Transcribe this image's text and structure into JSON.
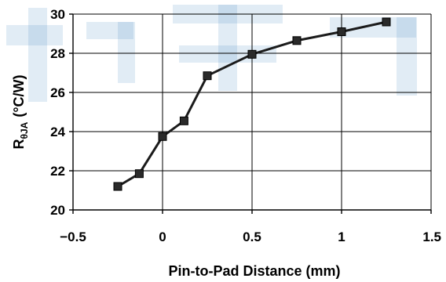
{
  "chart_data": {
    "type": "line",
    "title": "",
    "xlabel": "Pin-to-Pad Distance (mm)",
    "ylabel": {
      "main": "R",
      "subscript": "θJA",
      "unit": "(°C/W)"
    },
    "xlim": [
      -0.5,
      1.5
    ],
    "ylim": [
      20,
      30
    ],
    "x_ticks": [
      -0.5,
      0,
      0.5,
      1,
      1.5
    ],
    "x_tick_labels": [
      "−0.5",
      "0",
      "0.5",
      "1",
      "1.5"
    ],
    "y_ticks": [
      20,
      22,
      24,
      26,
      28,
      30
    ],
    "y_tick_labels": [
      "20",
      "22",
      "24",
      "26",
      "28",
      "30"
    ],
    "grid": true,
    "series": [
      {
        "x": [
          -0.25,
          -0.13,
          0,
          0.12,
          0.25,
          0.5,
          0.75,
          1.0,
          1.25
        ],
        "y": [
          21.2,
          21.85,
          23.75,
          24.55,
          26.85,
          27.95,
          28.65,
          29.1,
          29.6
        ]
      }
    ],
    "colors": {
      "line": "#1b1b1b",
      "marker": "#2a2a2a",
      "watermark": "#2b78b8"
    }
  }
}
